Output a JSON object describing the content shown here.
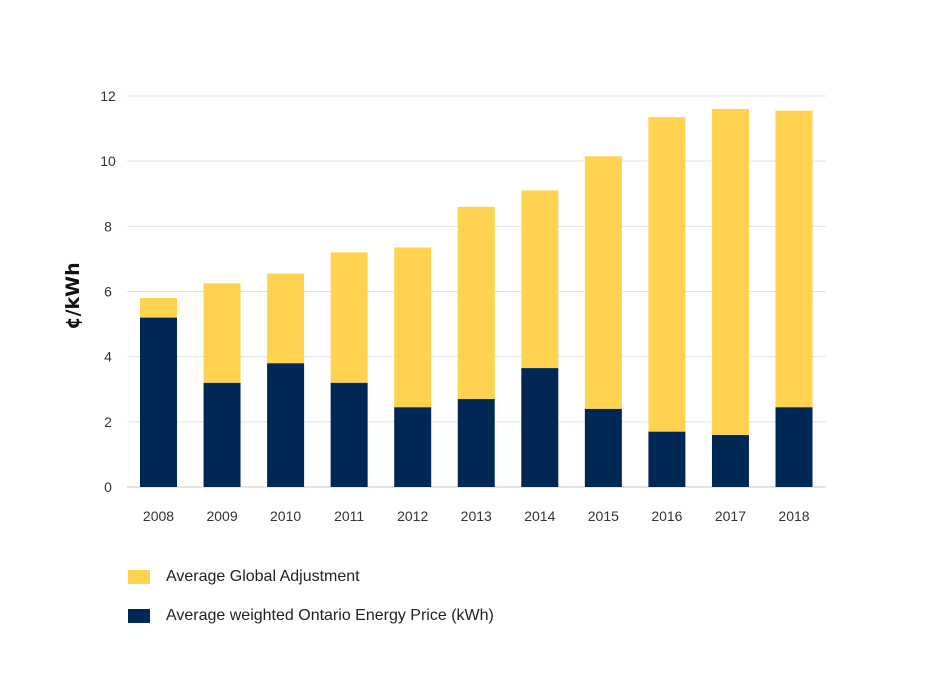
{
  "chart_data": {
    "type": "bar",
    "stacked": true,
    "title": "",
    "xlabel": "",
    "ylabel": "¢/kWh",
    "ylim": [
      0,
      12
    ],
    "yticks": [
      0,
      2,
      4,
      6,
      8,
      10,
      12
    ],
    "grid": true,
    "legend_position": "bottom-left",
    "categories": [
      "2008",
      "2009",
      "2010",
      "2011",
      "2012",
      "2013",
      "2014",
      "2015",
      "2016",
      "2017",
      "2018"
    ],
    "series": [
      {
        "name": "Average weighted Ontario Energy Price (kWh)",
        "color": "#002855",
        "values": [
          5.2,
          3.2,
          3.8,
          3.2,
          2.45,
          2.7,
          3.65,
          2.4,
          1.7,
          1.6,
          2.45
        ]
      },
      {
        "name": "Average Global Adjustment",
        "color": "#FFD24F",
        "values": [
          0.6,
          3.05,
          2.75,
          4.0,
          4.9,
          5.9,
          5.45,
          7.75,
          9.65,
          10.0,
          9.1
        ]
      }
    ]
  },
  "legend": [
    {
      "label": "Average Global Adjustment",
      "color": "#FFD24F"
    },
    {
      "label": "Average weighted Ontario Energy Price (kWh)",
      "color": "#002855"
    }
  ]
}
